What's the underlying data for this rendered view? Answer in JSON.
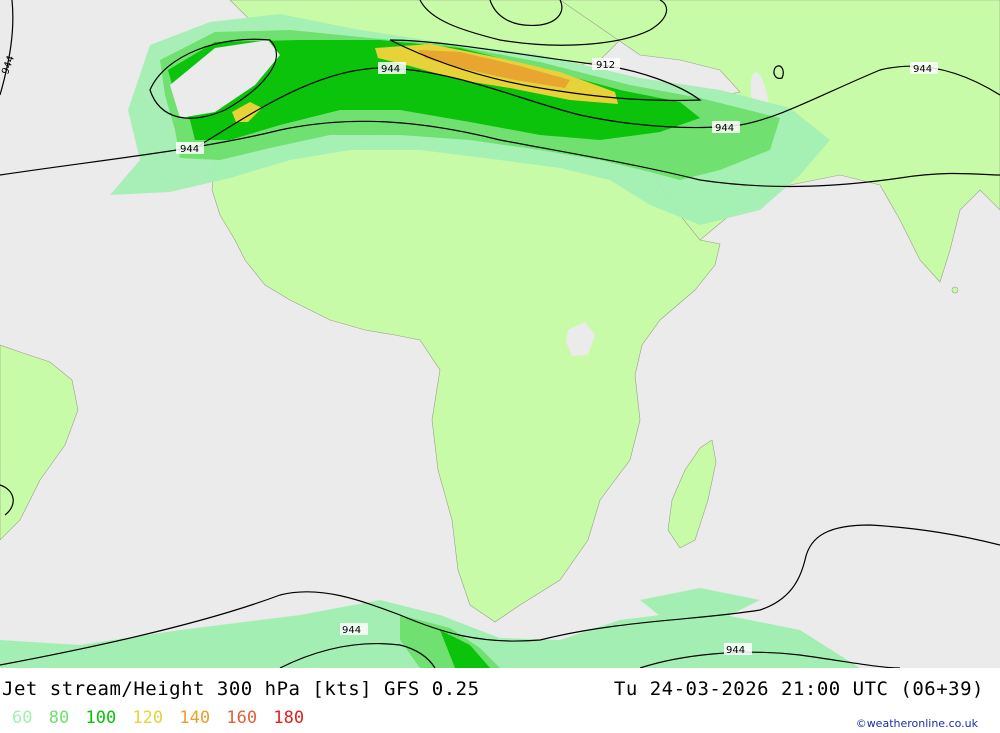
{
  "map": {
    "colors": {
      "ocean": "#ebebeb",
      "land": "#c8fba8",
      "jet_60": "#a3efb3",
      "jet_80": "#70e070",
      "jet_100": "#0ac30a",
      "jet_120": "#e8d23a",
      "jet_140": "#e8a030",
      "jet_160": "#e06040",
      "jet_180": "#e02020"
    },
    "contour_labels": [
      "944",
      "944",
      "912",
      "944",
      "944",
      "944",
      "944",
      "944"
    ]
  },
  "footer": {
    "title": "Jet stream/Height 300 hPa [kts] GFS 0.25",
    "timestamp": "Tu 24-03-2026 21:00 UTC (06+39)",
    "legend": [
      {
        "label": "60",
        "color": "#a3efb3"
      },
      {
        "label": "80",
        "color": "#70e070"
      },
      {
        "label": "100",
        "color": "#0ac30a"
      },
      {
        "label": "120",
        "color": "#e8d23a"
      },
      {
        "label": "140",
        "color": "#e8a030"
      },
      {
        "label": "160",
        "color": "#e06040"
      },
      {
        "label": "180",
        "color": "#e02020"
      }
    ],
    "credit": "©weatheronline.co.uk"
  }
}
